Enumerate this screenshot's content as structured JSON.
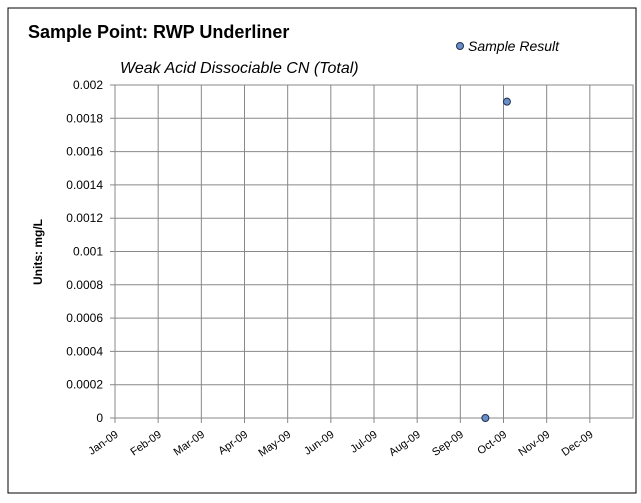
{
  "chart_data": {
    "type": "scatter",
    "title": "Sample Point: RWP Underliner",
    "subtitle": "Weak Acid Dissociable CN (Total)",
    "y_label": "Units: mg/L",
    "series": [
      {
        "name": "Sample Result",
        "color": "#6a8fc8",
        "x": [
          8.58,
          9.08
        ],
        "values": [
          0,
          0.0019
        ]
      }
    ],
    "xlim": [
      0,
      12
    ],
    "xticks": [
      {
        "value": 0,
        "label": "Jan-09"
      },
      {
        "value": 1,
        "label": "Feb-09"
      },
      {
        "value": 2,
        "label": "Mar-09"
      },
      {
        "value": 3,
        "label": "Apr-09"
      },
      {
        "value": 4,
        "label": "May-09"
      },
      {
        "value": 5,
        "label": "Jun-09"
      },
      {
        "value": 6,
        "label": "Jul-09"
      },
      {
        "value": 7,
        "label": "Aug-09"
      },
      {
        "value": 8,
        "label": "Sep-09"
      },
      {
        "value": 9,
        "label": "Oct-09"
      },
      {
        "value": 10,
        "label": "Nov-09"
      },
      {
        "value": 11,
        "label": "Dec-09"
      }
    ],
    "ylim": [
      0,
      0.002
    ],
    "yticks": [
      0,
      0.0002,
      0.0004,
      0.0006,
      0.0008,
      0.001,
      0.0012,
      0.0014,
      0.0016,
      0.0018,
      0.002
    ],
    "grid": true,
    "legend": "top-right"
  }
}
